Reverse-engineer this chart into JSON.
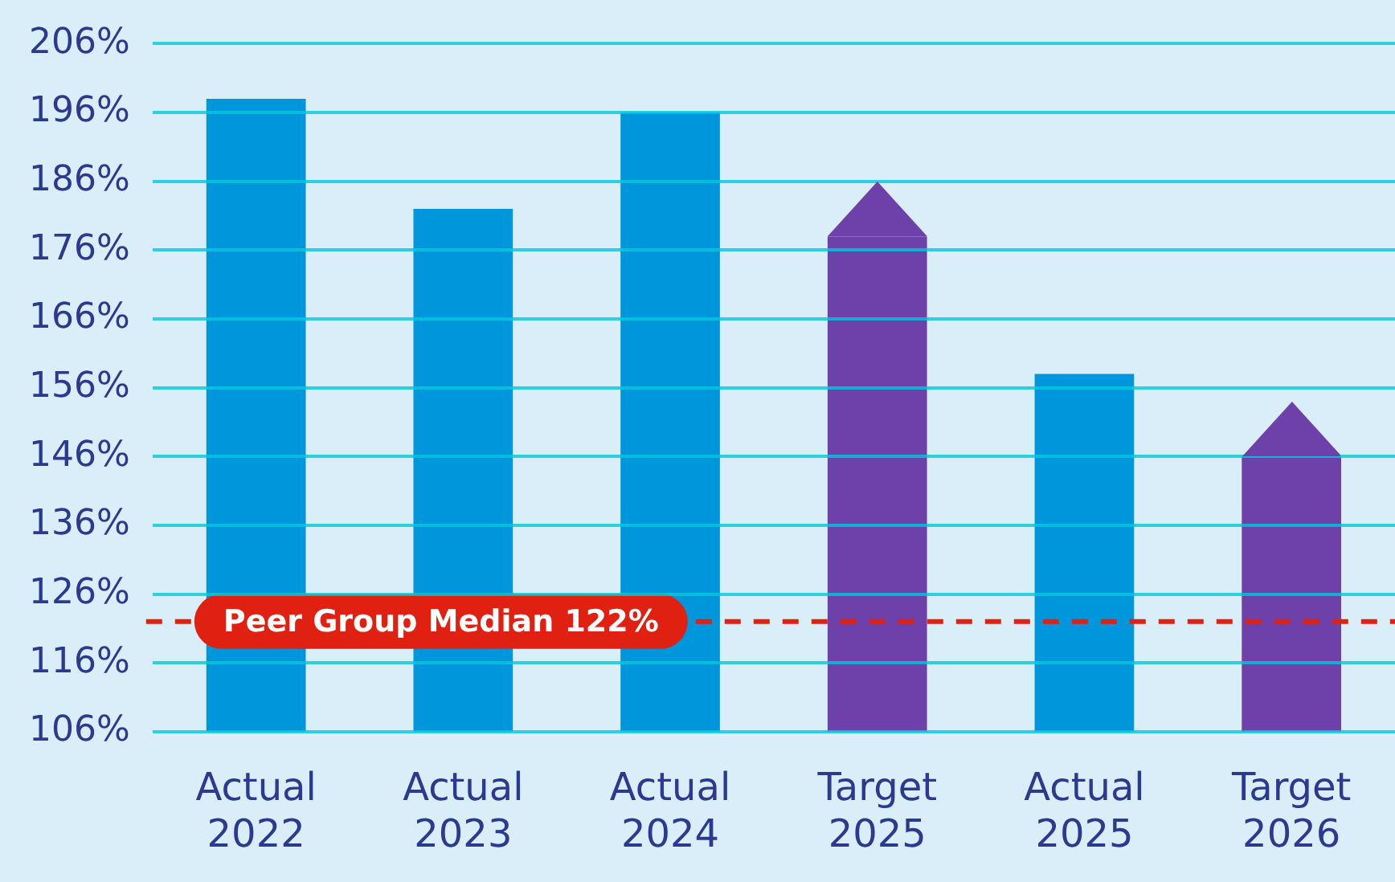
{
  "chart_data": {
    "type": "bar",
    "categories": [
      "Actual 2022",
      "Actual 2023",
      "Actual 2024",
      "Target 2025",
      "Actual 2025",
      "Target 2026"
    ],
    "values": [
      198,
      182,
      196,
      178,
      158,
      146
    ],
    "colors": [
      "#0096dc",
      "#0096dc",
      "#0096dc",
      "#6e40aa",
      "#0096dc",
      "#6e40aa"
    ],
    "ylim": [
      106,
      206
    ],
    "yticks": [
      {
        "value": 106,
        "label": "106%"
      },
      {
        "value": 116,
        "label": "116%"
      },
      {
        "value": 126,
        "label": "126%"
      },
      {
        "value": 136,
        "label": "136%"
      },
      {
        "value": 146,
        "label": "146%"
      },
      {
        "value": 156,
        "label": "156%"
      },
      {
        "value": 166,
        "label": "166%"
      },
      {
        "value": 176,
        "label": "176%"
      },
      {
        "value": 186,
        "label": "186%"
      },
      {
        "value": 196,
        "label": "196%"
      },
      {
        "value": 206,
        "label": "206%"
      }
    ],
    "grid": "y",
    "ref_lines": [
      {
        "axis": "y",
        "value": 122,
        "label": "Peer Group Median 122%",
        "color": "#e02010",
        "line_style": "dashed"
      }
    ]
  }
}
